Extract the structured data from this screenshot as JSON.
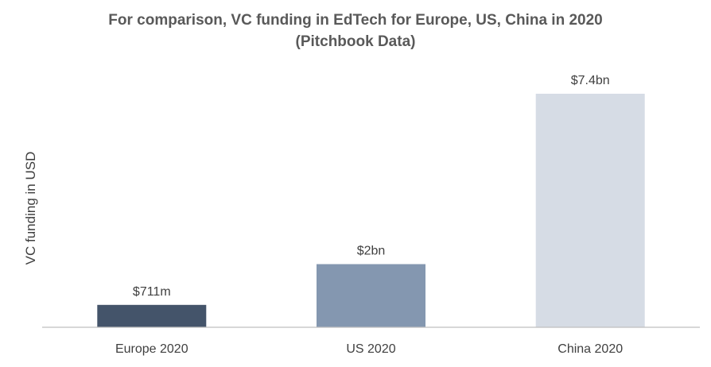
{
  "chart_data": {
    "type": "bar",
    "title": "For comparison, VC funding in EdTech for Europe, US, China in 2020",
    "subtitle": "(Pitchbook Data)",
    "xlabel": "",
    "ylabel": "VC funding in USD",
    "categories": [
      "Europe 2020",
      "US 2020",
      "China 2020"
    ],
    "values": [
      0.711,
      2.0,
      7.4
    ],
    "value_unit": "USD billions",
    "data_labels": [
      "$711m",
      "$2bn",
      "$7.4bn"
    ],
    "colors": [
      "#44546a",
      "#8497b0",
      "#d6dce5"
    ],
    "ylim": [
      0,
      7.4
    ],
    "grid": false,
    "legend": "none"
  }
}
